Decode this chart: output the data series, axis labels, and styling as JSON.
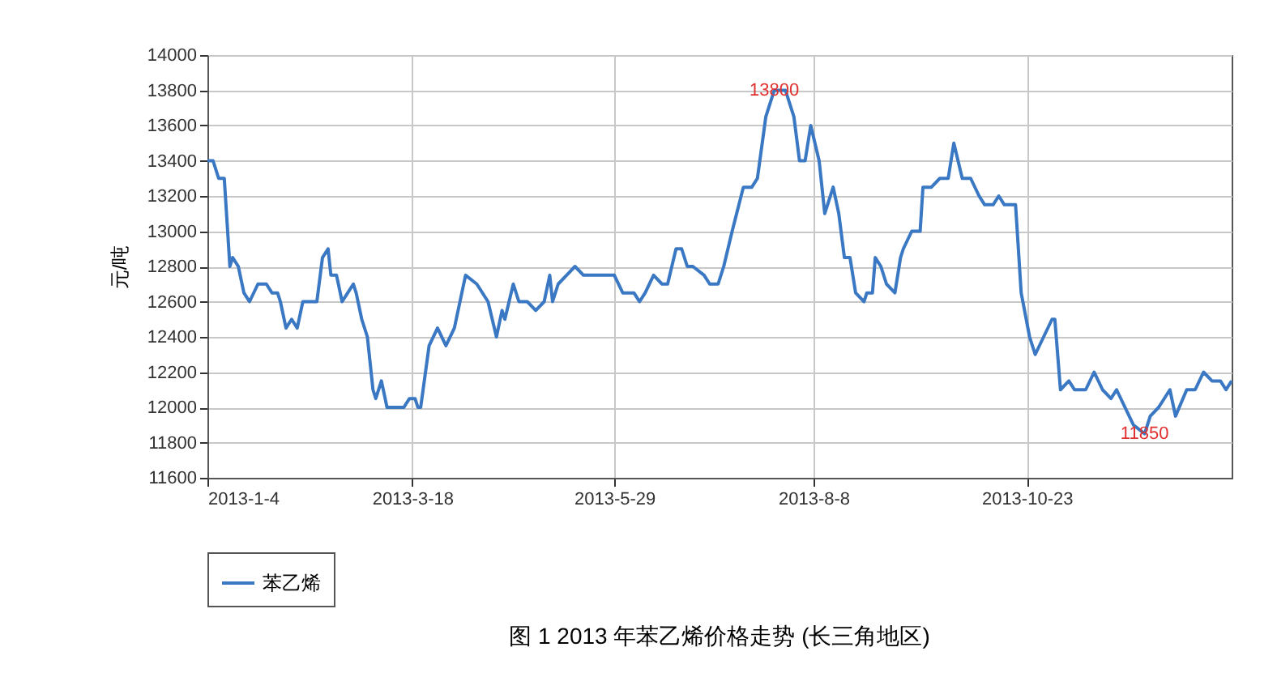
{
  "chart_data": {
    "type": "line",
    "title": "图 1  2013 年苯乙烯价格走势 (长三角地区)",
    "ylabel": "元/吨",
    "x": [
      "2013-01-04",
      "2013-01-06",
      "2013-01-08",
      "2013-01-10",
      "2013-01-12",
      "2013-01-13",
      "2013-01-15",
      "2013-01-17",
      "2013-01-19",
      "2013-01-22",
      "2013-01-25",
      "2013-01-27",
      "2013-01-29",
      "2013-01-30",
      "2013-02-01",
      "2013-02-03",
      "2013-02-05",
      "2013-02-07",
      "2013-02-12",
      "2013-02-14",
      "2013-02-16",
      "2013-02-17",
      "2013-02-19",
      "2013-02-21",
      "2013-02-23",
      "2013-02-25",
      "2013-02-26",
      "2013-02-28",
      "2013-03-02",
      "2013-03-04",
      "2013-03-05",
      "2013-03-07",
      "2013-03-09",
      "2013-03-15",
      "2013-03-17",
      "2013-03-19",
      "2013-03-20",
      "2013-03-21",
      "2013-03-24",
      "2013-03-27",
      "2013-03-30",
      "2013-04-02",
      "2013-04-06",
      "2013-04-10",
      "2013-04-14",
      "2013-04-17",
      "2013-04-19",
      "2013-04-20",
      "2013-04-23",
      "2013-04-25",
      "2013-04-28",
      "2013-05-01",
      "2013-05-04",
      "2013-05-06",
      "2013-05-07",
      "2013-05-09",
      "2013-05-12",
      "2013-05-15",
      "2013-05-18",
      "2013-05-21",
      "2013-05-24",
      "2013-05-29",
      "2013-06-01",
      "2013-06-05",
      "2013-06-07",
      "2013-06-09",
      "2013-06-12",
      "2013-06-15",
      "2013-06-17",
      "2013-06-20",
      "2013-06-22",
      "2013-06-24",
      "2013-06-26",
      "2013-06-30",
      "2013-07-02",
      "2013-07-05",
      "2013-07-07",
      "2013-07-10",
      "2013-07-14",
      "2013-07-17",
      "2013-07-19",
      "2013-07-22",
      "2013-07-25",
      "2013-07-29",
      "2013-08-01",
      "2013-08-03",
      "2013-08-05",
      "2013-08-07",
      "2013-08-10",
      "2013-08-12",
      "2013-08-15",
      "2013-08-17",
      "2013-08-19",
      "2013-08-21",
      "2013-08-23",
      "2013-08-26",
      "2013-08-27",
      "2013-08-29",
      "2013-08-30",
      "2013-09-01",
      "2013-09-03",
      "2013-09-06",
      "2013-09-08",
      "2013-09-09",
      "2013-09-12",
      "2013-09-15",
      "2013-09-16",
      "2013-09-19",
      "2013-09-22",
      "2013-09-25",
      "2013-09-27",
      "2013-09-30",
      "2013-10-03",
      "2013-10-06",
      "2013-10-08",
      "2013-10-11",
      "2013-10-13",
      "2013-10-15",
      "2013-10-19",
      "2013-10-21",
      "2013-10-24",
      "2013-10-26",
      "2013-10-29",
      "2013-11-01",
      "2013-11-02",
      "2013-11-04",
      "2013-11-07",
      "2013-11-09",
      "2013-11-13",
      "2013-11-16",
      "2013-11-19",
      "2013-11-22",
      "2013-11-24",
      "2013-11-27",
      "2013-11-30",
      "2013-12-04",
      "2013-12-06",
      "2013-12-09",
      "2013-12-13",
      "2013-12-15",
      "2013-12-19",
      "2013-12-22",
      "2013-12-25",
      "2013-12-28",
      "2013-12-31",
      "2014-01-02",
      "2014-01-04"
    ],
    "series": [
      {
        "name": "苯乙烯",
        "color": "#3a78c3",
        "values": [
          13400,
          13400,
          13300,
          13300,
          12800,
          12850,
          12800,
          12650,
          12600,
          12700,
          12700,
          12650,
          12650,
          12600,
          12450,
          12500,
          12450,
          12600,
          12600,
          12850,
          12900,
          12750,
          12750,
          12600,
          12650,
          12700,
          12650,
          12500,
          12400,
          12100,
          12050,
          12150,
          12000,
          12000,
          12050,
          12050,
          12000,
          12000,
          12350,
          12450,
          12350,
          12450,
          12750,
          12700,
          12600,
          12400,
          12550,
          12500,
          12700,
          12600,
          12600,
          12550,
          12600,
          12750,
          12600,
          12700,
          12750,
          12800,
          12750,
          12750,
          12750,
          12750,
          12650,
          12650,
          12600,
          12650,
          12750,
          12700,
          12700,
          12900,
          12900,
          12800,
          12800,
          12750,
          12700,
          12700,
          12800,
          13000,
          13250,
          13250,
          13300,
          13650,
          13800,
          13800,
          13650,
          13400,
          13400,
          13600,
          13400,
          13100,
          13250,
          13100,
          12850,
          12850,
          12650,
          12600,
          12650,
          12650,
          12850,
          12800,
          12700,
          12650,
          12850,
          12900,
          13000,
          13000,
          13250,
          13250,
          13300,
          13300,
          13500,
          13300,
          13300,
          13200,
          13150,
          13150,
          13200,
          13150,
          13150,
          12650,
          12400,
          12300,
          12400,
          12500,
          12500,
          12100,
          12150,
          12100,
          12100,
          12200,
          12100,
          12050,
          12100,
          12000,
          11900,
          11850,
          11950,
          12000,
          12100,
          11950,
          12100,
          12100,
          12200,
          12150,
          12150,
          12100,
          12150
        ]
      }
    ],
    "xlim": [
      "2013-01-04",
      "2014-01-04"
    ],
    "xticks": [
      {
        "value": "2013-01-04",
        "label": "2013-1-4"
      },
      {
        "value": "2013-03-18",
        "label": "2013-3-18"
      },
      {
        "value": "2013-05-29",
        "label": "2013-5-29"
      },
      {
        "value": "2013-08-08",
        "label": "2013-8-8"
      },
      {
        "value": "2013-10-23",
        "label": "2013-10-23"
      }
    ],
    "ylim": [
      11600,
      14000
    ],
    "yticks": [
      11600,
      11800,
      12000,
      12200,
      12400,
      12600,
      12800,
      13000,
      13200,
      13400,
      13600,
      13800,
      14000
    ],
    "annotations": [
      {
        "text": "13800",
        "x": "2013-07-25",
        "y": 13800
      },
      {
        "text": "11850",
        "x": "2013-12-04",
        "y": 11850
      }
    ],
    "grid": true,
    "legend": "bottom",
    "marker": "none",
    "line_style": "solid"
  }
}
